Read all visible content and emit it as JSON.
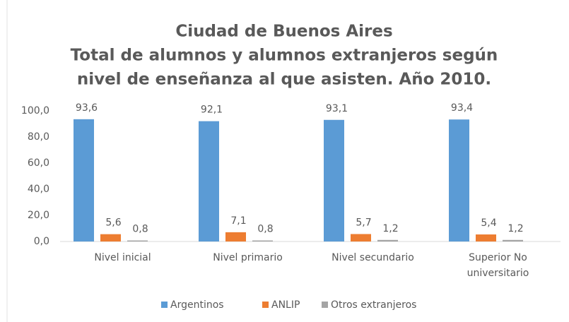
{
  "chart_data": {
    "type": "bar",
    "title": [
      "Ciudad de Buenos Aires",
      "Total de alumnos y alumnos extranjeros según",
      "nivel de enseñanza al que asisten. Año 2010."
    ],
    "categories": [
      "Nivel inicial",
      "Nivel primario",
      "Nivel secundario",
      "Superior No universitario"
    ],
    "series": [
      {
        "name": "Argentinos",
        "color": "#5b9bd5",
        "values": [
          93.6,
          92.1,
          93.1,
          93.4
        ],
        "value_labels": [
          "93,6",
          "92,1",
          "93,1",
          "93,4"
        ]
      },
      {
        "name": "ANLIP",
        "color": "#ed7d31",
        "values": [
          5.6,
          7.1,
          5.7,
          5.4
        ],
        "value_labels": [
          "5,6",
          "7,1",
          "5,7",
          "5,4"
        ]
      },
      {
        "name": "Otros extranjeros",
        "color": "#a5a5a5",
        "values": [
          0.8,
          0.8,
          1.2,
          1.2
        ],
        "value_labels": [
          "0,8",
          "0,8",
          "1,2",
          "1,2"
        ]
      }
    ],
    "ylim": [
      0,
      100
    ],
    "yticks": [
      {
        "value": 0,
        "label": "0,0"
      },
      {
        "value": 20,
        "label": "20,0"
      },
      {
        "value": 40,
        "label": "40,0"
      },
      {
        "value": 60,
        "label": "60,0"
      },
      {
        "value": 80,
        "label": "80,0"
      },
      {
        "value": 100,
        "label": "100,0"
      }
    ],
    "legend": "bottom",
    "grid": false
  }
}
